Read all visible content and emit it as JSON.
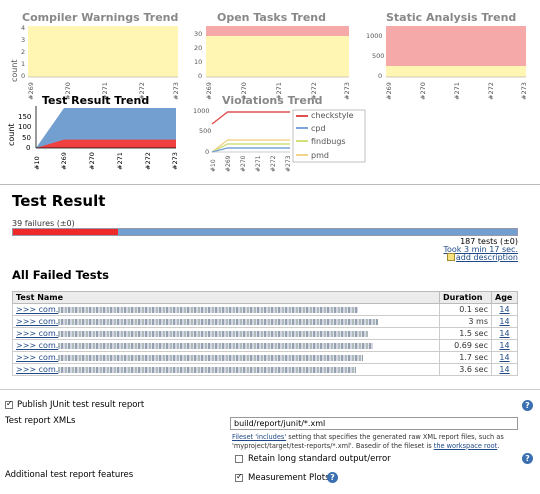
{
  "trends": {
    "compiler_warnings": {
      "title": "Compiler Warnings Trend",
      "ylabel": "count",
      "yticks": [
        "4",
        "3",
        "2",
        "1",
        "0"
      ],
      "xticks": [
        "#269",
        "#270",
        "#271",
        "#272",
        "#273"
      ]
    },
    "open_tasks": {
      "title": "Open Tasks Trend",
      "yticks": [
        "30",
        "20",
        "10",
        "0"
      ],
      "xticks": [
        "#269",
        "#270",
        "#271",
        "#272",
        "#273"
      ]
    },
    "static_analysis": {
      "title": "Static Analysis Trend",
      "yticks": [
        "1000",
        "500",
        "0"
      ],
      "xticks": [
        "#269",
        "#270",
        "#271",
        "#272",
        "#273"
      ]
    },
    "test_result": {
      "title": "Test Result Trend",
      "ylabel": "count",
      "yticks": [
        "150",
        "100",
        "50",
        "0"
      ],
      "xticks": [
        "#10",
        "#269",
        "#270",
        "#271",
        "#272",
        "#273"
      ]
    },
    "violations": {
      "title": "Violations Trend",
      "yticks": [
        "1000",
        "500",
        "0"
      ],
      "xticks": [
        "#10",
        "#269",
        "#270",
        "#271",
        "#272",
        "#273"
      ],
      "legend": [
        {
          "name": "checkstyle",
          "color": "#e05050"
        },
        {
          "name": "cpd",
          "color": "#7aa3d8"
        },
        {
          "name": "findbugs",
          "color": "#d4e07a"
        },
        {
          "name": "pmd",
          "color": "#f2d48a"
        }
      ]
    }
  },
  "chart_data": [
    {
      "type": "area",
      "title": "Compiler Warnings Trend",
      "ylabel": "count",
      "categories": [
        "#269",
        "#270",
        "#271",
        "#272",
        "#273"
      ],
      "ylim": [
        0,
        4
      ],
      "series": [
        {
          "values": [
            4,
            4,
            4,
            4,
            4
          ],
          "color": "#fff6b3"
        }
      ]
    },
    {
      "type": "area",
      "title": "Open Tasks Trend",
      "categories": [
        "#269",
        "#270",
        "#271",
        "#272",
        "#273"
      ],
      "ylim": [
        0,
        35
      ],
      "series": [
        {
          "values": [
            27,
            27,
            27,
            27,
            27
          ],
          "color": "#fff6b3"
        },
        {
          "values": [
            32,
            32,
            32,
            32,
            32
          ],
          "color": "#f5a9a9"
        }
      ]
    },
    {
      "type": "area",
      "title": "Static Analysis Trend",
      "categories": [
        "#269",
        "#270",
        "#271",
        "#272",
        "#273"
      ],
      "ylim": [
        0,
        1250
      ],
      "series": [
        {
          "values": [
            250,
            250,
            250,
            250,
            250
          ],
          "color": "#fff6b3"
        },
        {
          "values": [
            1250,
            1250,
            1250,
            1250,
            1250
          ],
          "color": "#f5a9a9"
        }
      ]
    },
    {
      "type": "area",
      "title": "Test Result Trend",
      "ylabel": "count",
      "categories": [
        "#10",
        "#269",
        "#270",
        "#271",
        "#272",
        "#273"
      ],
      "ylim": [
        0,
        187
      ],
      "series": [
        {
          "values": [
            0,
            39,
            39,
            39,
            39,
            39
          ],
          "color": "#f04040"
        },
        {
          "values": [
            0,
            187,
            187,
            187,
            187,
            187
          ],
          "color": "#729fcf"
        }
      ]
    },
    {
      "type": "line",
      "title": "Violations Trend",
      "categories": [
        "#10",
        "#269",
        "#270",
        "#271",
        "#272",
        "#273"
      ],
      "ylim": [
        0,
        1100
      ],
      "series": [
        {
          "name": "checkstyle",
          "values": [
            700,
            1000,
            1000,
            1000,
            1000,
            1000
          ],
          "color": "#e05050"
        },
        {
          "name": "cpd",
          "values": [
            0,
            100,
            100,
            100,
            100,
            100
          ],
          "color": "#7aa3d8"
        },
        {
          "name": "findbugs",
          "values": [
            0,
            200,
            200,
            200,
            200,
            200
          ],
          "color": "#d4e07a"
        },
        {
          "name": "pmd",
          "values": [
            0,
            300,
            300,
            300,
            300,
            300
          ],
          "color": "#f2d48a"
        }
      ]
    }
  ],
  "test_result": {
    "title": "Test Result",
    "failures": "39 failures (±0)",
    "total_failed": 39,
    "total_tests": 187,
    "tests_label": "187 tests (±0)",
    "took": "Took 3 min 17 sec.",
    "add_description": "add description"
  },
  "failed_tests": {
    "title": "All Failed Tests",
    "columns": [
      "Test Name",
      "Duration",
      "Age"
    ],
    "rows": [
      {
        "prefix": ">>> com.",
        "duration": "0.1 sec",
        "age": "14"
      },
      {
        "prefix": ">>> com.",
        "duration": "3 ms",
        "age": "14"
      },
      {
        "prefix": ">>> com.",
        "duration": "1.5 sec",
        "age": "14"
      },
      {
        "prefix": ">>> com.",
        "duration": "0.69 sec",
        "age": "14"
      },
      {
        "prefix": ">>> com.",
        "duration": "1.7 sec",
        "age": "14"
      },
      {
        "prefix": ">>> com.",
        "duration": "3.6 sec",
        "age": "14"
      }
    ]
  },
  "config": {
    "publish_label": "Publish JUnit test result report",
    "publish_checked": true,
    "xmls_label": "Test report XMLs",
    "xmls_value": "build/report/junit/*.xml",
    "help_text_link": "Fileset 'includes'",
    "help_text_1": " setting that specifies the generated raw XML report files, such as",
    "help_text_2": "'myproject/target/test-reports/*.xml'. Basedir of the fileset is ",
    "help_text_root": "the workspace root",
    "help_text_end": ".",
    "retain_label": "Retain long standard output/error",
    "retain_checked": false,
    "additional_label": "Additional test report features",
    "measurement_label": "Measurement Plots",
    "measurement_checked": true
  }
}
